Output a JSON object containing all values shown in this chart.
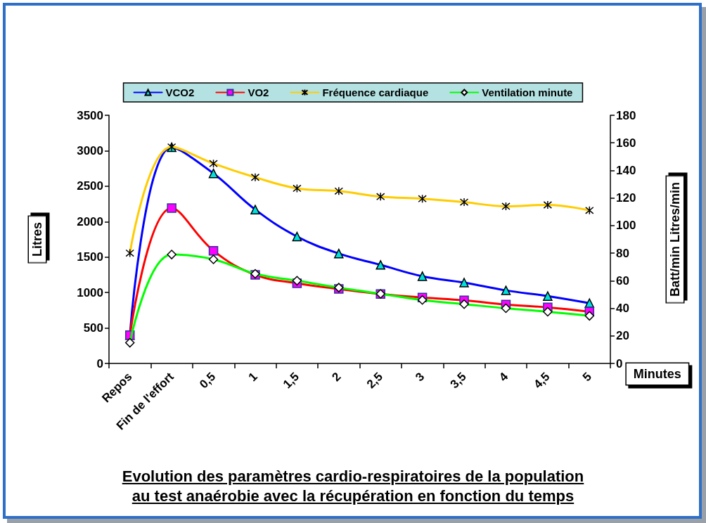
{
  "chart_data": {
    "type": "line",
    "title": "Evolution des paramètres cardio-respiratoires de la population\nau test anaérobie avec la récupération en fonction du temps",
    "xlabel": "Minutes",
    "ylabel": "Litres",
    "y2label": "Batt/min Litres/min",
    "categories": [
      "Repos",
      "Fin de l'effort",
      "0,5",
      "1",
      "1,5",
      "2",
      "2,5",
      "3",
      "3,5",
      "4",
      "4,5",
      "5"
    ],
    "series": [
      {
        "name": "VCO2",
        "color": "#0000ff",
        "marker": "triangle",
        "values": [
          400,
          3050,
          2680,
          2170,
          1790,
          1550,
          1390,
          1230,
          1140,
          1030,
          950,
          850
        ]
      },
      {
        "name": "VO2",
        "color": "#ff0000",
        "marker": "square",
        "values": [
          400,
          2190,
          1590,
          1250,
          1130,
          1050,
          980,
          930,
          890,
          830,
          790,
          730
        ]
      },
      {
        "name": "Fréquence cardiaque",
        "color": "#ffcc00",
        "marker": "cross",
        "axis": "y2",
        "values": [
          80,
          157,
          145,
          135,
          127,
          125,
          121,
          119.5,
          117,
          114,
          115,
          111
        ]
      },
      {
        "name": "Ventilation minute",
        "color": "#00ff00",
        "marker": "diamond",
        "axis": "y2",
        "values": [
          15,
          79,
          75.5,
          65,
          60,
          55,
          50.5,
          46,
          43,
          40,
          37.5,
          34.5
        ]
      }
    ],
    "ylim": [
      0,
      3500
    ],
    "yticks": [
      0,
      500,
      1000,
      1500,
      2000,
      2500,
      3000,
      3500
    ],
    "y2lim": [
      0,
      180
    ],
    "y2ticks": [
      0,
      20,
      40,
      60,
      80,
      100,
      120,
      140,
      160,
      180
    ],
    "legend": "top",
    "grid": false
  }
}
